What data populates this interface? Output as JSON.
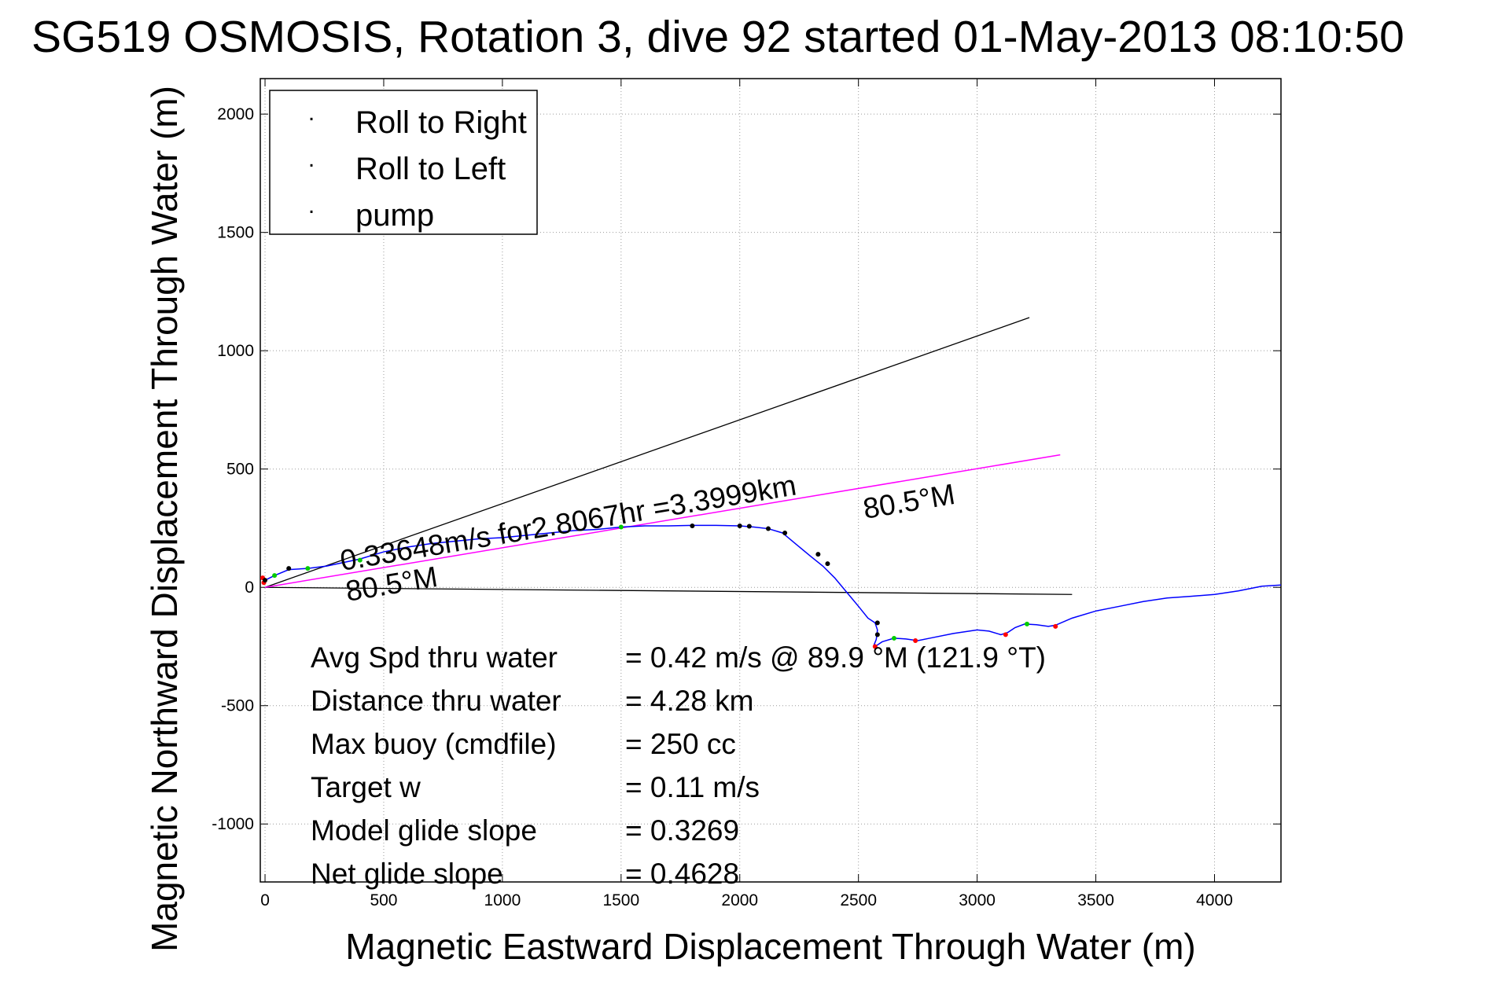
{
  "chart_data": {
    "type": "line",
    "title": "SG519 OSMOSIS, Rotation 3, dive 92 started 01-May-2013 08:10:50",
    "xlabel": "Magnetic Eastward Displacement Through Water (m)",
    "ylabel": "Magnetic Northward Displacement Through Water (m)",
    "xlim": [
      -20,
      4280
    ],
    "ylim": [
      -1245,
      2150
    ],
    "xticks": [
      0,
      500,
      1000,
      1500,
      2000,
      2500,
      3000,
      3500,
      4000
    ],
    "xtick_labels": [
      "0",
      "500",
      "1000",
      "1500",
      "2000",
      "2500",
      "3000",
      "3500",
      "4000"
    ],
    "yticks": [
      -1000,
      -500,
      0,
      500,
      1000,
      1500,
      2000
    ],
    "ytick_labels": [
      "-1000",
      "-500",
      "0",
      "500",
      "1000",
      "1500",
      "2000"
    ],
    "grid": true,
    "legend_position": "top-left",
    "legend": [
      {
        "label": "Roll to Right",
        "color": "#00cc00"
      },
      {
        "label": "Roll to Left",
        "color": "#ff0000"
      },
      {
        "label": "pump",
        "color": "#000000"
      }
    ],
    "colors": {
      "track": "#0000ff",
      "heading_line": "#ff00ff",
      "reference_lines": "#000000",
      "roll_right": "#00cc00",
      "roll_left": "#ff0000",
      "pump": "#000000"
    },
    "track": {
      "x": [
        0,
        40,
        100,
        180,
        260,
        330,
        400,
        500,
        600,
        700,
        800,
        900,
        1000,
        1100,
        1200,
        1300,
        1400,
        1500,
        1600,
        1700,
        1800,
        1900,
        2000,
        2060,
        2120,
        2180,
        2240,
        2300,
        2350,
        2400,
        2450,
        2500,
        2540,
        2570,
        2580,
        2575,
        2565,
        2570,
        2600,
        2650,
        2700,
        2750,
        2800,
        2900,
        3000,
        3050,
        3100,
        3130,
        3160,
        3200,
        3250,
        3300,
        3330,
        3400,
        3500,
        3600,
        3700,
        3800,
        3900,
        4000,
        4100,
        4200,
        4280
      ],
      "y": [
        30,
        50,
        75,
        80,
        90,
        105,
        120,
        150,
        170,
        185,
        195,
        205,
        210,
        220,
        230,
        240,
        245,
        255,
        260,
        260,
        262,
        262,
        260,
        255,
        248,
        230,
        180,
        130,
        90,
        40,
        -20,
        -80,
        -130,
        -150,
        -180,
        -220,
        -245,
        -250,
        -230,
        -215,
        -218,
        -225,
        -215,
        -195,
        -180,
        -185,
        -200,
        -190,
        -170,
        -155,
        -158,
        -165,
        -160,
        -130,
        -100,
        -80,
        -60,
        -45,
        -38,
        -30,
        -15,
        5,
        10
      ]
    },
    "roll_right_points": {
      "x": [
        40,
        180,
        400,
        1500,
        2650,
        3210
      ],
      "y": [
        50,
        80,
        115,
        255,
        -215,
        -155
      ]
    },
    "roll_left_points": {
      "x": [
        -10,
        -5,
        2570,
        2740,
        3120,
        3330
      ],
      "y": [
        40,
        20,
        -250,
        -225,
        -200,
        -165
      ]
    },
    "pump_points": {
      "x": [
        0,
        100,
        1800,
        2000,
        2040,
        2120,
        2190,
        2330,
        2370,
        2580,
        2580
      ],
      "y": [
        30,
        80,
        260,
        260,
        258,
        248,
        230,
        140,
        100,
        -150,
        -200
      ]
    },
    "heading_line": {
      "x": [
        0,
        3350
      ],
      "y": [
        0,
        560
      ]
    },
    "reference_lines": [
      {
        "x": [
          0,
          3220
        ],
        "y": [
          0,
          1140
        ]
      },
      {
        "x": [
          0,
          3400
        ],
        "y": [
          0,
          -30
        ]
      }
    ],
    "annotations": {
      "speed_note": "0.33648m/s for2.8067hr =3.3999km",
      "heading_upper": "80.5°M",
      "heading_lower": "80.5°M",
      "marker_glyph": "."
    },
    "stats": [
      {
        "label": "Avg Spd thru water",
        "value": "=  0.42 m/s @  89.9 °M (121.9 °T)"
      },
      {
        "label": "Distance thru water",
        "value": "=  4.28 km"
      },
      {
        "label": "Max buoy (cmdfile)",
        "value": "= 250 cc"
      },
      {
        "label": "Target w",
        "value": "= 0.11 m/s"
      },
      {
        "label": "Model glide slope",
        "value": "= 0.3269"
      },
      {
        "label": "Net glide slope",
        "value": "= 0.4628"
      }
    ]
  }
}
